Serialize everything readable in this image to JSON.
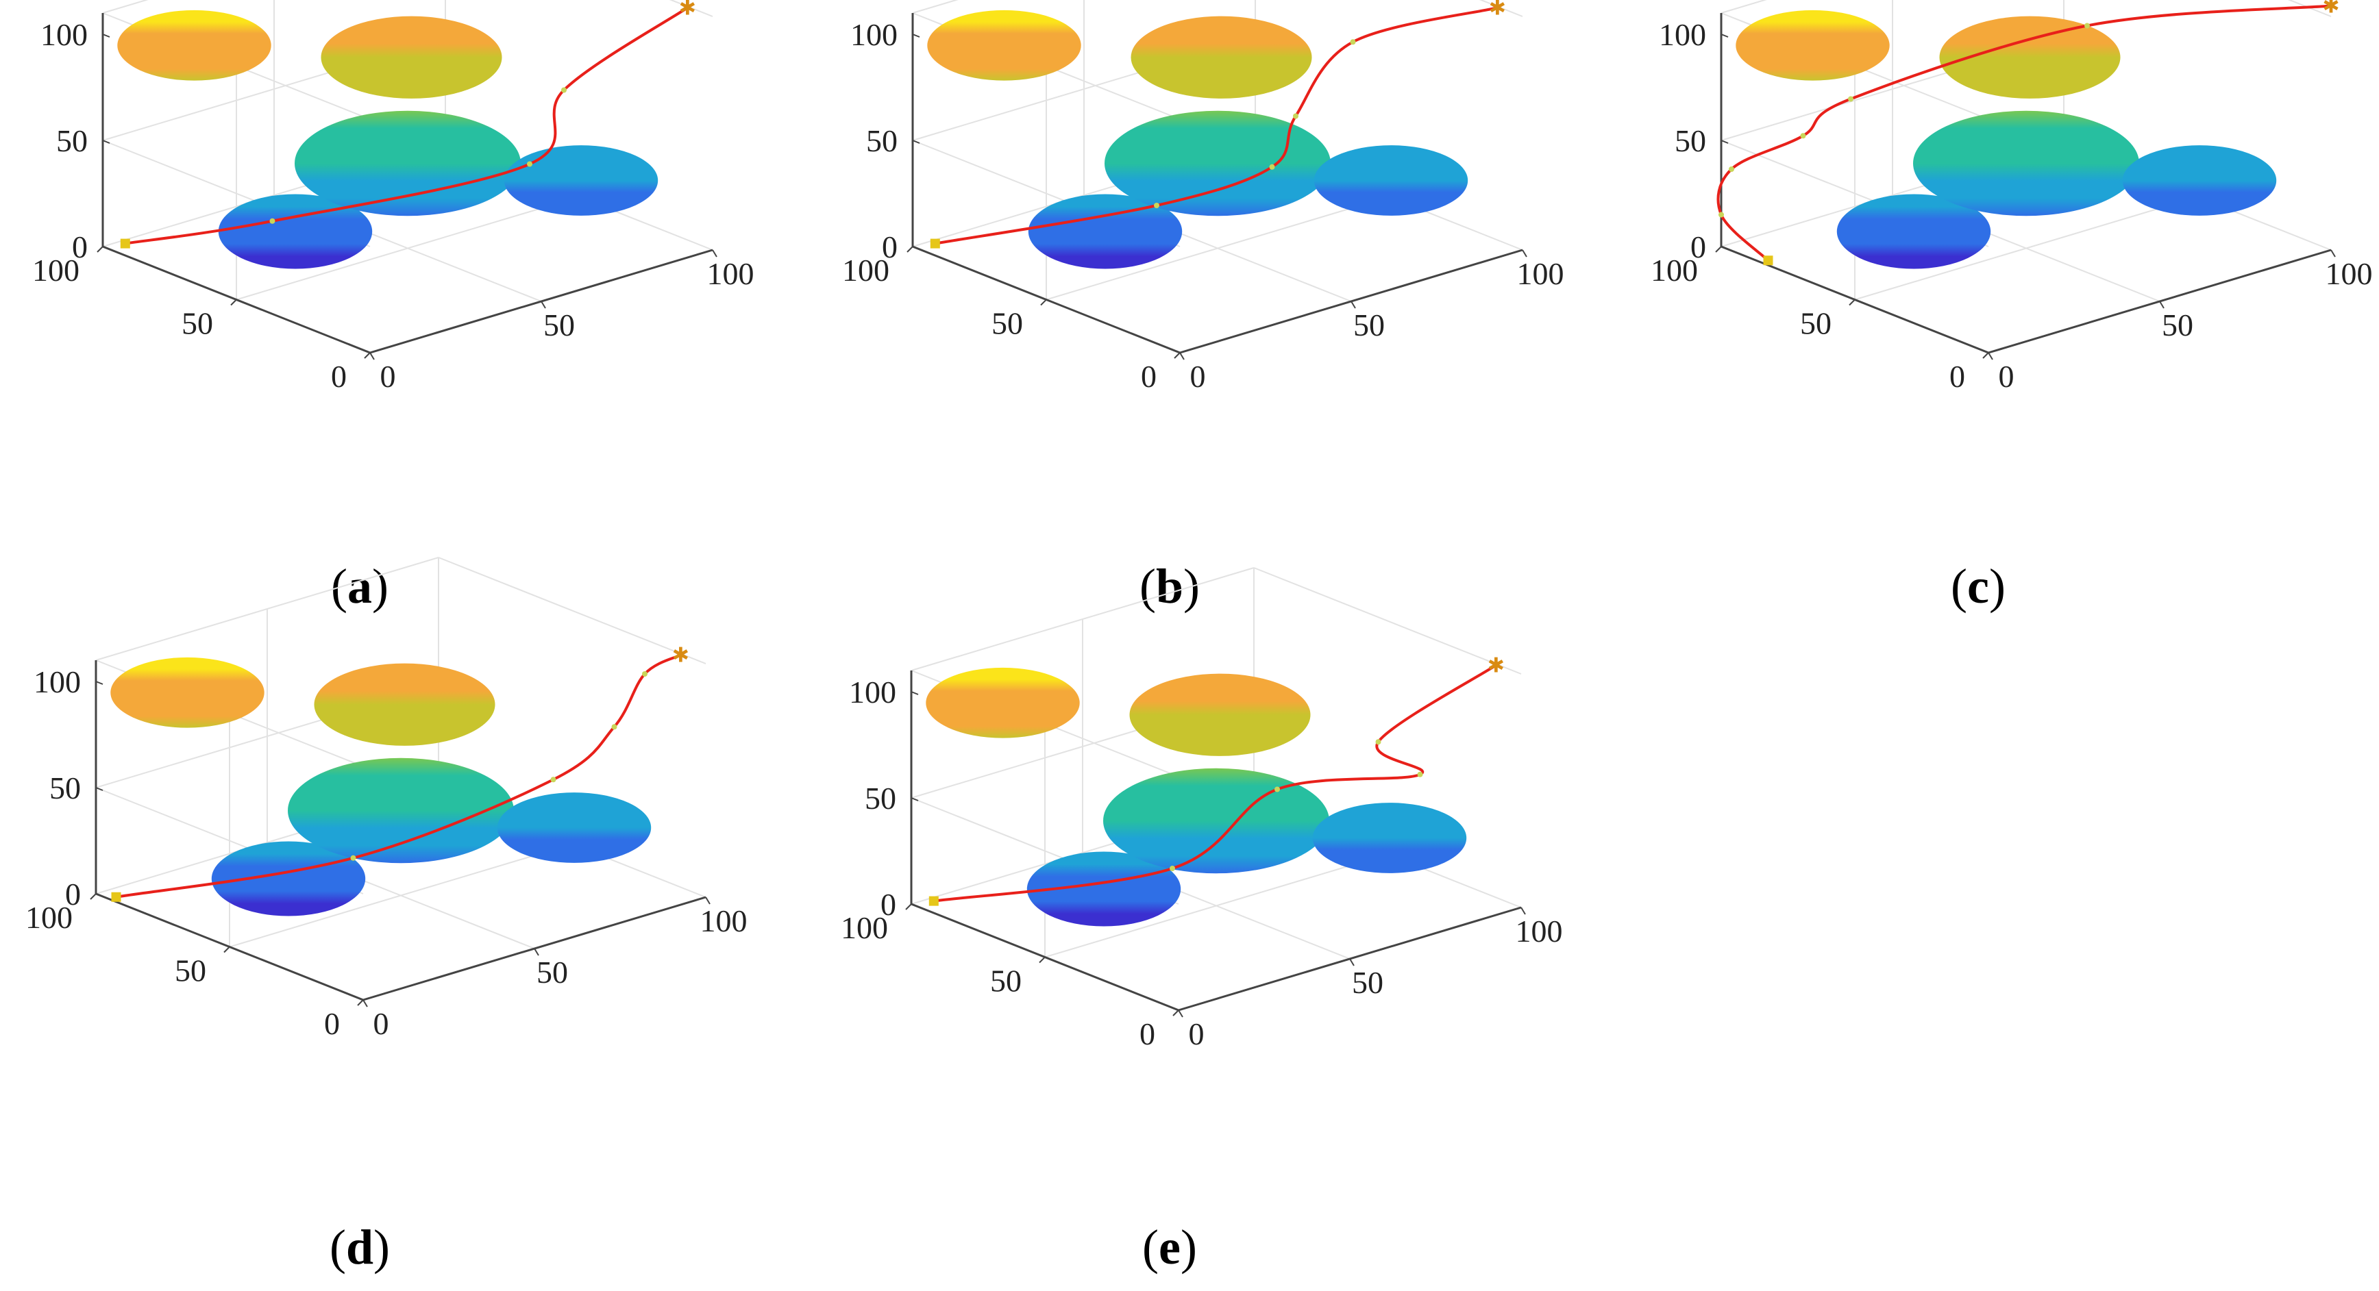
{
  "colors": {
    "path": "#e8201a",
    "start_marker": "#e6c619",
    "goal_marker": "#d98b12",
    "waypoint_marker": "#c9d65a",
    "box_line": "#444444",
    "grid_line": "#e2e2e2",
    "colormap": [
      "#3b2fd0",
      "#2f6fe6",
      "#1fa3d6",
      "#27bfa0",
      "#78c853",
      "#c8c42e",
      "#f4a83a",
      "#fbe41a"
    ]
  },
  "chart_data": [
    {
      "type": "3d-surface-path",
      "caption": {
        "open": "(",
        "letter": "a",
        "close": ")"
      },
      "axes": {
        "x_ticks": [
          "0",
          "50",
          "100"
        ],
        "y_ticks": [
          "0",
          "50",
          "100"
        ],
        "z_ticks": [
          "0",
          "50",
          "100"
        ],
        "xlim": [
          0,
          100
        ],
        "ylim": [
          0,
          100
        ],
        "zlim": [
          0,
          110
        ]
      },
      "obstacles": [
        {
          "shape": "ellipsoid",
          "center": [
            15,
            85,
            95
          ],
          "radii": [
            17,
            17,
            12
          ]
        },
        {
          "shape": "ellipsoid",
          "center": [
            55,
            55,
            85
          ],
          "radii": [
            20,
            20,
            14
          ]
        },
        {
          "shape": "ellipsoid",
          "center": [
            50,
            50,
            40
          ],
          "radii": [
            25,
            25,
            18
          ]
        },
        {
          "shape": "ellipsoid",
          "center": [
            25,
            60,
            15
          ],
          "radii": [
            17,
            17,
            13
          ]
        },
        {
          "shape": "ellipsoid",
          "center": [
            85,
            30,
            25
          ],
          "radii": [
            17,
            17,
            12
          ]
        }
      ],
      "path": [
        [
          5,
          98,
          0
        ],
        [
          30,
          75,
          10
        ],
        [
          70,
          30,
          40
        ],
        [
          80,
          30,
          70
        ],
        [
          95,
          3,
          115
        ]
      ]
    },
    {
      "type": "3d-surface-path",
      "caption": {
        "open": "(",
        "letter": "b",
        "close": ")"
      },
      "axes": {
        "x_ticks": [
          "0",
          "50",
          "100"
        ],
        "y_ticks": [
          "0",
          "50",
          "100"
        ],
        "z_ticks": [
          "0",
          "50",
          "100"
        ],
        "xlim": [
          0,
          100
        ],
        "ylim": [
          0,
          100
        ],
        "zlim": [
          0,
          110
        ]
      },
      "obstacles": [
        {
          "shape": "ellipsoid",
          "center": [
            15,
            85,
            95
          ],
          "radii": [
            17,
            17,
            12
          ]
        },
        {
          "shape": "ellipsoid",
          "center": [
            55,
            55,
            85
          ],
          "radii": [
            20,
            20,
            14
          ]
        },
        {
          "shape": "ellipsoid",
          "center": [
            50,
            50,
            40
          ],
          "radii": [
            25,
            25,
            18
          ]
        },
        {
          "shape": "ellipsoid",
          "center": [
            25,
            60,
            15
          ],
          "radii": [
            17,
            17,
            13
          ]
        },
        {
          "shape": "ellipsoid",
          "center": [
            85,
            30,
            25
          ],
          "radii": [
            17,
            17,
            12
          ]
        }
      ],
      "path": [
        [
          5,
          98,
          0
        ],
        [
          40,
          60,
          20
        ],
        [
          62,
          45,
          35
        ],
        [
          65,
          40,
          60
        ],
        [
          70,
          25,
          100
        ],
        [
          95,
          3,
          115
        ]
      ]
    },
    {
      "type": "3d-surface-path",
      "caption": {
        "open": "(",
        "letter": "c",
        "close": ")"
      },
      "axes": {
        "x_ticks": [
          "0",
          "50",
          "100"
        ],
        "y_ticks": [
          "0",
          "50",
          "100"
        ],
        "z_ticks": [
          "0",
          "50",
          "100"
        ],
        "xlim": [
          0,
          100
        ],
        "ylim": [
          0,
          100
        ],
        "zlim": [
          0,
          110
        ]
      },
      "obstacles": [
        {
          "shape": "ellipsoid",
          "center": [
            15,
            85,
            95
          ],
          "radii": [
            17,
            17,
            12
          ]
        },
        {
          "shape": "ellipsoid",
          "center": [
            55,
            55,
            85
          ],
          "radii": [
            20,
            20,
            14
          ]
        },
        {
          "shape": "ellipsoid",
          "center": [
            50,
            50,
            40
          ],
          "radii": [
            25,
            25,
            18
          ]
        },
        {
          "shape": "ellipsoid",
          "center": [
            25,
            60,
            15
          ],
          "radii": [
            17,
            17,
            13
          ]
        },
        {
          "shape": "ellipsoid",
          "center": [
            85,
            30,
            25
          ],
          "radii": [
            17,
            17,
            12
          ]
        }
      ],
      "path": [
        [
          2,
          85,
          0
        ],
        [
          0,
          100,
          15
        ],
        [
          3,
          100,
          35
        ],
        [
          20,
          95,
          45
        ],
        [
          30,
          90,
          60
        ],
        [
          60,
          40,
          105
        ],
        [
          100,
          0,
          115
        ]
      ]
    },
    {
      "type": "3d-surface-path",
      "caption": {
        "open": "(",
        "letter": "d",
        "close": ")"
      },
      "axes": {
        "x_ticks": [
          "0",
          "50",
          "100"
        ],
        "y_ticks": [
          "0",
          "50",
          "100"
        ],
        "z_ticks": [
          "0",
          "50",
          "100"
        ],
        "xlim": [
          0,
          100
        ],
        "ylim": [
          0,
          100
        ],
        "zlim": [
          0,
          110
        ]
      },
      "obstacles": [
        {
          "shape": "ellipsoid",
          "center": [
            15,
            85,
            95
          ],
          "radii": [
            17,
            17,
            12
          ]
        },
        {
          "shape": "ellipsoid",
          "center": [
            55,
            55,
            85
          ],
          "radii": [
            20,
            20,
            14
          ]
        },
        {
          "shape": "ellipsoid",
          "center": [
            50,
            50,
            40
          ],
          "radii": [
            25,
            25,
            18
          ]
        },
        {
          "shape": "ellipsoid",
          "center": [
            25,
            60,
            15
          ],
          "radii": [
            17,
            17,
            13
          ]
        },
        {
          "shape": "ellipsoid",
          "center": [
            85,
            30,
            25
          ],
          "radii": [
            17,
            17,
            12
          ]
        }
      ],
      "path": [
        [
          2,
          95,
          0
        ],
        [
          40,
          55,
          20
        ],
        [
          75,
          25,
          55
        ],
        [
          85,
          15,
          80
        ],
        [
          90,
          10,
          105
        ],
        [
          95,
          3,
          115
        ]
      ]
    },
    {
      "type": "3d-surface-path",
      "caption": {
        "open": "(",
        "letter": "e",
        "close": ")"
      },
      "axes": {
        "x_ticks": [
          "0",
          "50",
          "100"
        ],
        "y_ticks": [
          "0",
          "50",
          "100"
        ],
        "z_ticks": [
          "0",
          "50",
          "100"
        ],
        "xlim": [
          0,
          100
        ],
        "ylim": [
          0,
          100
        ],
        "zlim": [
          0,
          110
        ]
      },
      "obstacles": [
        {
          "shape": "ellipsoid",
          "center": [
            15,
            85,
            95
          ],
          "radii": [
            17,
            17,
            12
          ]
        },
        {
          "shape": "ellipsoid",
          "center": [
            55,
            55,
            85
          ],
          "radii": [
            20,
            20,
            14
          ]
        },
        {
          "shape": "ellipsoid",
          "center": [
            50,
            50,
            40
          ],
          "radii": [
            25,
            25,
            18
          ]
        },
        {
          "shape": "ellipsoid",
          "center": [
            25,
            60,
            15
          ],
          "radii": [
            17,
            17,
            13
          ]
        },
        {
          "shape": "ellipsoid",
          "center": [
            85,
            30,
            25
          ],
          "radii": [
            17,
            17,
            12
          ]
        }
      ],
      "path": [
        [
          5,
          98,
          0
        ],
        [
          45,
          60,
          15
        ],
        [
          60,
          40,
          55
        ],
        [
          90,
          25,
          55
        ],
        [
          70,
          15,
          85
        ],
        [
          95,
          3,
          115
        ]
      ]
    }
  ]
}
